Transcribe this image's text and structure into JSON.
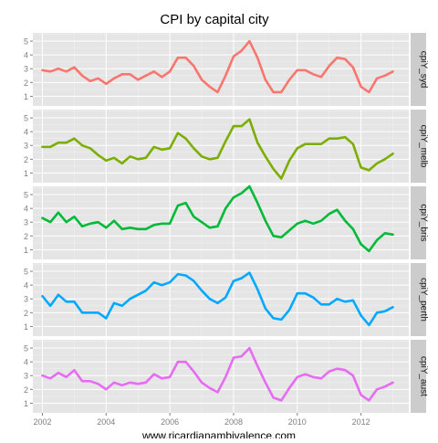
{
  "chart_data": {
    "type": "line",
    "title": "CPI by capital city",
    "caption": "www.ricardianambivalence.com",
    "xlabel": "",
    "ylabel": "",
    "xlim": [
      2001.7,
      2013.5
    ],
    "ylim": [
      0.3,
      5.6
    ],
    "x_ticks": [
      2002,
      2004,
      2006,
      2008,
      2010,
      2012
    ],
    "y_ticks": [
      1,
      2,
      3,
      4,
      5
    ],
    "grid": true,
    "x": [
      2002.0,
      2002.25,
      2002.5,
      2002.75,
      2003.0,
      2003.25,
      2003.5,
      2003.75,
      2004.0,
      2004.25,
      2004.5,
      2004.75,
      2005.0,
      2005.25,
      2005.5,
      2005.75,
      2006.0,
      2006.25,
      2006.5,
      2006.75,
      2007.0,
      2007.25,
      2007.5,
      2007.75,
      2008.0,
      2008.25,
      2008.5,
      2008.75,
      2009.0,
      2009.25,
      2009.5,
      2009.75,
      2010.0,
      2010.25,
      2010.5,
      2010.75,
      2011.0,
      2011.25,
      2011.5,
      2011.75,
      2012.0,
      2012.25,
      2012.5,
      2012.75,
      2013.0
    ],
    "series": [
      {
        "name": "cpiY_syd",
        "color": "#F8766D",
        "values": [
          2.9,
          2.8,
          3.0,
          2.8,
          3.1,
          2.5,
          2.1,
          2.3,
          1.9,
          2.3,
          2.6,
          2.6,
          2.2,
          2.5,
          2.8,
          2.4,
          2.8,
          3.8,
          3.8,
          3.2,
          2.2,
          1.7,
          1.3,
          2.5,
          3.9,
          4.3,
          5.0,
          3.8,
          2.2,
          1.3,
          1.3,
          2.2,
          2.9,
          2.9,
          2.6,
          2.4,
          3.2,
          3.8,
          3.7,
          3.1,
          1.7,
          1.3,
          2.3,
          2.5,
          2.8
        ]
      },
      {
        "name": "cpiY_melb",
        "color": "#7CAE00",
        "values": [
          2.9,
          2.9,
          3.2,
          3.2,
          3.5,
          3.0,
          2.8,
          2.3,
          1.9,
          2.1,
          1.7,
          2.2,
          2.0,
          2.1,
          2.9,
          2.7,
          2.8,
          3.9,
          3.5,
          2.8,
          2.2,
          2.0,
          2.1,
          3.3,
          4.4,
          4.4,
          4.9,
          3.2,
          2.2,
          1.3,
          0.6,
          1.9,
          2.8,
          3.1,
          3.1,
          3.1,
          3.5,
          3.5,
          3.6,
          3.1,
          1.4,
          1.2,
          1.7,
          2.0,
          2.4
        ]
      },
      {
        "name": "cpiY_bris",
        "color": "#00BA38",
        "values": [
          3.3,
          3.0,
          3.7,
          3.0,
          3.4,
          2.7,
          2.9,
          3.0,
          2.6,
          3.1,
          2.5,
          2.6,
          2.5,
          2.5,
          2.8,
          2.9,
          2.9,
          4.2,
          4.4,
          3.4,
          3.0,
          2.6,
          2.7,
          4.0,
          4.8,
          5.1,
          5.6,
          4.4,
          3.1,
          2.0,
          1.9,
          2.4,
          2.9,
          3.1,
          2.9,
          3.1,
          3.6,
          3.9,
          3.1,
          2.5,
          1.4,
          0.9,
          1.7,
          2.2,
          2.1
        ]
      },
      {
        "name": "cpiY_perth",
        "color": "#00A9FF",
        "values": [
          3.2,
          2.5,
          3.3,
          2.8,
          2.8,
          2.0,
          2.0,
          2.0,
          1.6,
          2.7,
          2.5,
          3.0,
          3.3,
          3.6,
          4.2,
          4.0,
          4.2,
          4.8,
          4.7,
          4.3,
          3.6,
          3.0,
          2.7,
          3.1,
          4.3,
          4.5,
          4.9,
          3.7,
          2.3,
          1.6,
          1.5,
          2.2,
          3.4,
          3.4,
          3.1,
          2.6,
          2.6,
          3.0,
          2.8,
          2.9,
          1.8,
          1.1,
          2.0,
          2.1,
          2.4
        ]
      },
      {
        "name": "cpiY_aust",
        "color": "#E76BF3",
        "values": [
          3.0,
          2.8,
          3.2,
          2.9,
          3.4,
          2.6,
          2.6,
          2.4,
          2.0,
          2.5,
          2.3,
          2.5,
          2.4,
          2.5,
          3.1,
          2.8,
          2.9,
          4.0,
          4.0,
          3.3,
          2.5,
          2.1,
          1.8,
          2.9,
          4.3,
          4.4,
          5.0,
          3.7,
          2.5,
          1.4,
          1.2,
          2.1,
          2.9,
          3.1,
          2.9,
          2.8,
          3.3,
          3.5,
          3.4,
          3.0,
          1.6,
          1.2,
          2.0,
          2.2,
          2.5
        ]
      }
    ]
  }
}
